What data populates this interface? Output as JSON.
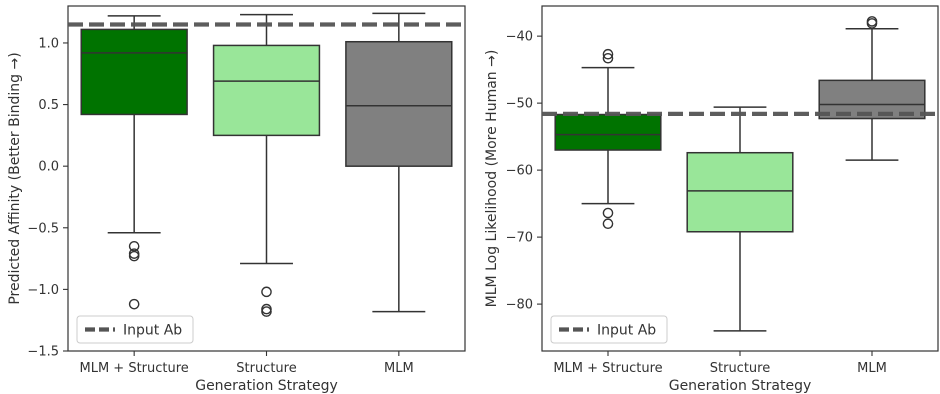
{
  "colors": {
    "axis": "#333333",
    "input_line": "#555555",
    "legend_border": "#cccccc"
  },
  "chart_data": [
    {
      "type": "box",
      "xlabel": "Generation Strategy",
      "ylabel": "Predicted Affinity (Better Binding →)",
      "ylim": [
        -1.5,
        1.3
      ],
      "yticks": [
        -1.5,
        -1.0,
        -0.5,
        0.0,
        0.5,
        1.0
      ],
      "ytick_labels": [
        "−1.5",
        "−1.0",
        "−0.5",
        "0.0",
        "0.5",
        "1.0"
      ],
      "categories": [
        "MLM + Structure",
        "Structure",
        "MLM"
      ],
      "boxes": [
        {
          "category": "MLM + Structure",
          "color": "#007300",
          "whislo": -0.54,
          "q1": 0.42,
          "med": 0.92,
          "q3": 1.11,
          "whishi": 1.22,
          "fliers": [
            -0.65,
            -0.71,
            -0.73,
            -1.12
          ]
        },
        {
          "category": "Structure",
          "color": "#99e699",
          "whislo": -0.79,
          "q1": 0.25,
          "med": 0.69,
          "q3": 0.98,
          "whishi": 1.23,
          "fliers": [
            -1.02,
            -1.16,
            -1.18
          ]
        },
        {
          "category": "MLM",
          "color": "#808080",
          "whislo": -1.18,
          "q1": 0.0,
          "med": 0.49,
          "q3": 1.01,
          "whishi": 1.24,
          "fliers": []
        }
      ],
      "reference_line": {
        "label": "Input Ab",
        "value": 1.15
      },
      "grid": false,
      "legend": "lower-left"
    },
    {
      "type": "box",
      "xlabel": "Generation Strategy",
      "ylabel": "MLM Log Likelihood (More Human →)",
      "ylim": [
        -87,
        -35.5
      ],
      "yticks": [
        -80,
        -70,
        -60,
        -50,
        -40
      ],
      "ytick_labels": [
        "−80",
        "−70",
        "−60",
        "−50",
        "−40"
      ],
      "categories": [
        "MLM + Structure",
        "Structure",
        "MLM"
      ],
      "boxes": [
        {
          "category": "MLM + Structure",
          "color": "#007300",
          "whislo": -65.0,
          "q1": -57.0,
          "med": -54.7,
          "q3": -51.7,
          "whishi": -44.7,
          "fliers": [
            -42.7,
            -43.3,
            -66.4,
            -68.0
          ]
        },
        {
          "category": "Structure",
          "color": "#99e699",
          "whislo": -84.0,
          "q1": -69.2,
          "med": -63.1,
          "q3": -57.4,
          "whishi": -50.6,
          "fliers": []
        },
        {
          "category": "MLM",
          "color": "#808080",
          "whislo": -58.5,
          "q1": -52.3,
          "med": -50.2,
          "q3": -46.6,
          "whishi": -38.9,
          "fliers": [
            -37.8,
            -38.1
          ]
        }
      ],
      "reference_line": {
        "label": "Input Ab",
        "value": -51.6
      },
      "grid": false,
      "legend": "lower-left"
    }
  ]
}
